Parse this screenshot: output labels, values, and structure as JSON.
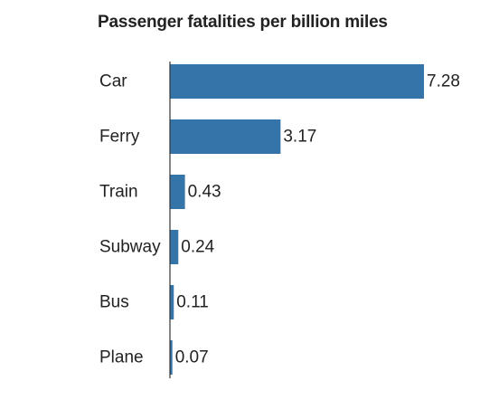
{
  "chart_data": {
    "type": "bar",
    "orientation": "horizontal",
    "title": "Passenger fatalities per billion miles",
    "categories": [
      "Car",
      "Ferry",
      "Train",
      "Subway",
      "Bus",
      "Plane"
    ],
    "values": [
      7.28,
      3.17,
      0.43,
      0.24,
      0.11,
      0.07
    ],
    "value_labels": [
      "7.28",
      "3.17",
      "0.43",
      "0.24",
      "0.11",
      "0.07"
    ],
    "xlabel": "",
    "ylabel": "",
    "xlim": [
      0,
      7.28
    ],
    "grid": false,
    "legend": "none",
    "bar_color": "#3574a8",
    "axis_color": "#333333"
  }
}
